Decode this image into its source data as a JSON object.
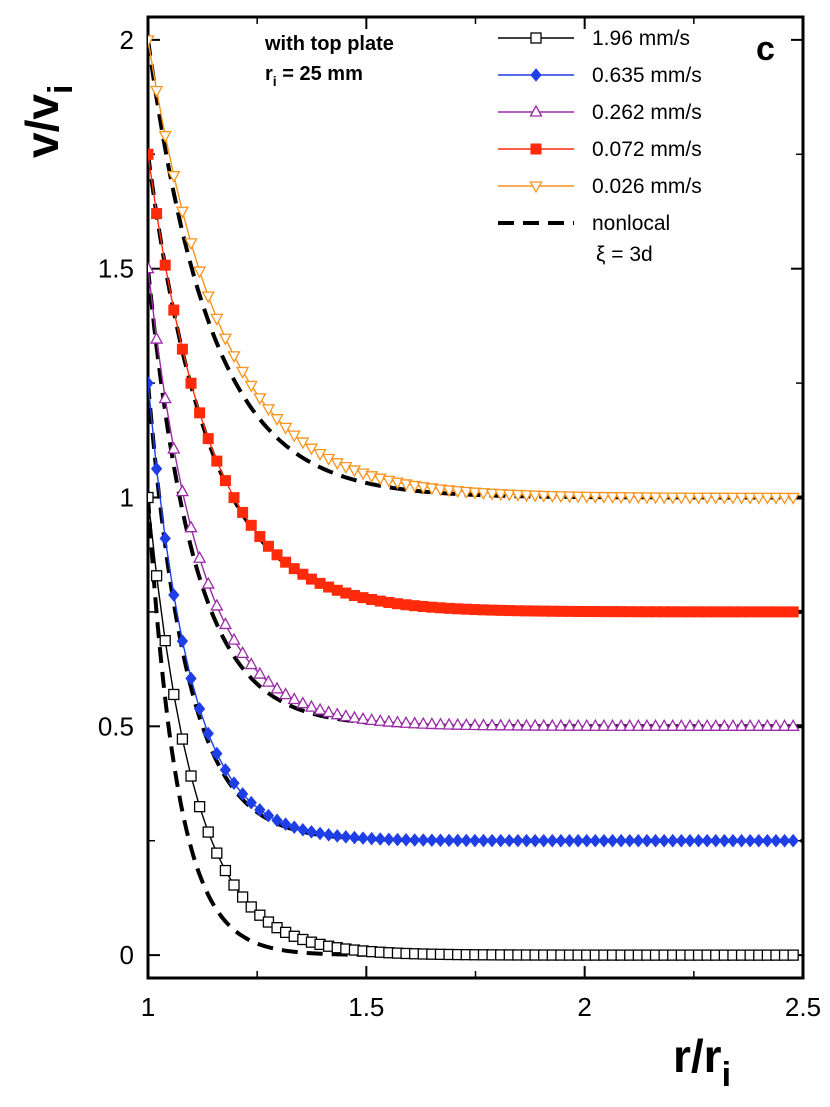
{
  "chart_data": {
    "type": "line",
    "panel_label": "c",
    "annotation_line1": "with top plate",
    "annotation_r": "r",
    "annotation_sub": "i",
    "annotation_rest": " = 25 mm",
    "xlabel_main": "r/r",
    "xlabel_sub": "i",
    "ylabel_main": "v/v",
    "ylabel_sub": "i",
    "xlim": [
      1,
      2.5
    ],
    "ylim": [
      -0.05,
      2.05
    ],
    "x_ticks": [
      {
        "value": 1,
        "label": "1"
      },
      {
        "value": 1.5,
        "label": "1.5"
      },
      {
        "value": 2,
        "label": "2"
      },
      {
        "value": 2.5,
        "label": "2.5"
      }
    ],
    "y_ticks": [
      {
        "value": 0,
        "label": "0"
      },
      {
        "value": 0.5,
        "label": "0.5"
      },
      {
        "value": 1,
        "label": "1"
      },
      {
        "value": 1.5,
        "label": "1.5"
      },
      {
        "value": 2,
        "label": "2"
      }
    ],
    "series": [
      {
        "name": "1.96 mm/s",
        "color": "#000000",
        "marker": "open-square",
        "offset": 0.0,
        "peak": 1.0,
        "decay": 0.105,
        "x_start": 1.0,
        "x_step": 0.0197,
        "count": 76
      },
      {
        "name": "0.635 mm/s",
        "color": "#1f3fe6",
        "marker": "filled-diamond",
        "offset": 0.25,
        "peak": 1.0,
        "decay": 0.095,
        "x_start": 1.0,
        "x_step": 0.0197,
        "count": 76
      },
      {
        "name": "0.262 mm/s",
        "color": "#9a2aa8",
        "marker": "open-triangle-up",
        "offset": 0.5,
        "peak": 1.0,
        "decay": 0.118,
        "x_start": 1.0,
        "x_step": 0.0197,
        "count": 76
      },
      {
        "name": "0.072 mm/s",
        "color": "#ff2a0a",
        "marker": "filled-square",
        "offset": 0.75,
        "peak": 1.0,
        "decay": 0.142,
        "x_start": 1.0,
        "x_step": 0.0197,
        "count": 76
      },
      {
        "name": "0.026 mm/s",
        "color": "#f7941d",
        "marker": "open-triangle-down",
        "offset": 1.0,
        "peak": 1.0,
        "decay": 0.168,
        "x_start": 1.0,
        "x_step": 0.0197,
        "count": 76
      }
    ],
    "nonlocal": {
      "name": "nonlocal",
      "name_line2": "ξ = 3d",
      "color": "#000000",
      "curves": [
        {
          "offset": 0.0,
          "peak": 1.0,
          "decay": 0.068
        },
        {
          "offset": 0.25,
          "peak": 1.0,
          "decay": 0.09
        },
        {
          "offset": 0.5,
          "peak": 1.0,
          "decay": 0.105
        },
        {
          "offset": 0.75,
          "peak": 1.0,
          "decay": 0.14
        },
        {
          "offset": 1.0,
          "peak": 1.0,
          "decay": 0.145
        }
      ]
    }
  }
}
